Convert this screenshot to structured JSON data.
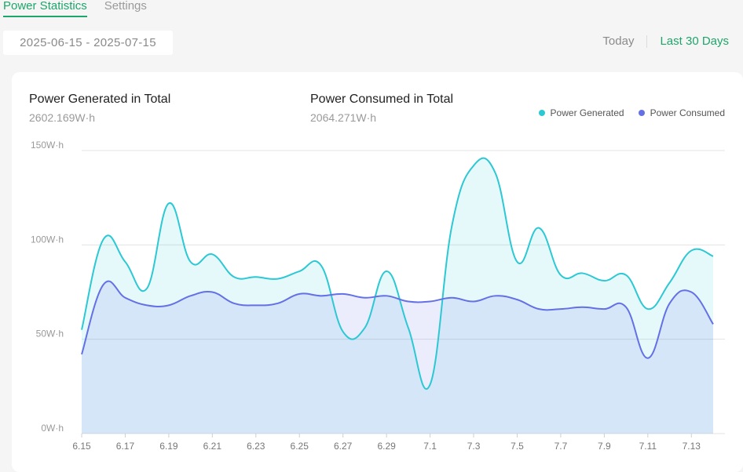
{
  "tabs": [
    {
      "label": "Power Statistics",
      "active": true
    },
    {
      "label": "Settings",
      "active": false
    }
  ],
  "date_range": "2025-06-15 - 2025-07-15",
  "range_options": [
    {
      "label": "Today",
      "active": false
    },
    {
      "label": "Last 30 Days",
      "active": true
    }
  ],
  "stats": {
    "generated": {
      "label": "Power Generated in Total",
      "value": "2602.169W·h"
    },
    "consumed": {
      "label": "Power Consumed in Total",
      "value": "2064.271W·h"
    }
  },
  "legend": {
    "generated": {
      "label": "Power Generated",
      "color": "#2cc8d4"
    },
    "consumed": {
      "label": "Power Consumed",
      "color": "#6470e6"
    }
  },
  "chart_data": {
    "type": "area",
    "x": [
      "6.15",
      "6.16",
      "6.17",
      "6.18",
      "6.19",
      "6.20",
      "6.21",
      "6.22",
      "6.23",
      "6.24",
      "6.25",
      "6.26",
      "6.27",
      "6.28",
      "6.29",
      "6.30",
      "7.1",
      "7.2",
      "7.3",
      "7.4",
      "7.5",
      "7.6",
      "7.7",
      "7.8",
      "7.9",
      "7.10",
      "7.11",
      "7.12",
      "7.13",
      "7.14"
    ],
    "tick_labels": [
      "6.15",
      "6.17",
      "6.19",
      "6.21",
      "6.23",
      "6.25",
      "6.27",
      "6.29",
      "7.1",
      "7.3",
      "7.5",
      "7.7",
      "7.9",
      "7.11",
      "7.13"
    ],
    "y_ticks": [
      "0W·h",
      "50W·h",
      "100W·h",
      "150W·h"
    ],
    "ylim": [
      0,
      150
    ],
    "grid": true,
    "legend_position": "top-right",
    "series": [
      {
        "name": "Power Generated",
        "color": "#2cc8d4",
        "values": [
          55,
          103,
          91,
          77,
          122,
          91,
          95,
          83,
          83,
          82,
          86,
          89,
          54,
          56,
          86,
          56,
          26,
          110,
          142,
          138,
          91,
          109,
          84,
          85,
          81,
          84,
          66,
          80,
          97,
          94
        ]
      },
      {
        "name": "Power Consumed",
        "color": "#6470e6",
        "values": [
          42,
          79,
          72,
          68,
          68,
          73,
          75,
          69,
          68,
          69,
          74,
          73,
          74,
          72,
          73,
          70,
          70,
          72,
          70,
          73,
          71,
          66,
          66,
          67,
          66,
          67,
          40,
          69,
          75,
          58
        ]
      }
    ]
  }
}
